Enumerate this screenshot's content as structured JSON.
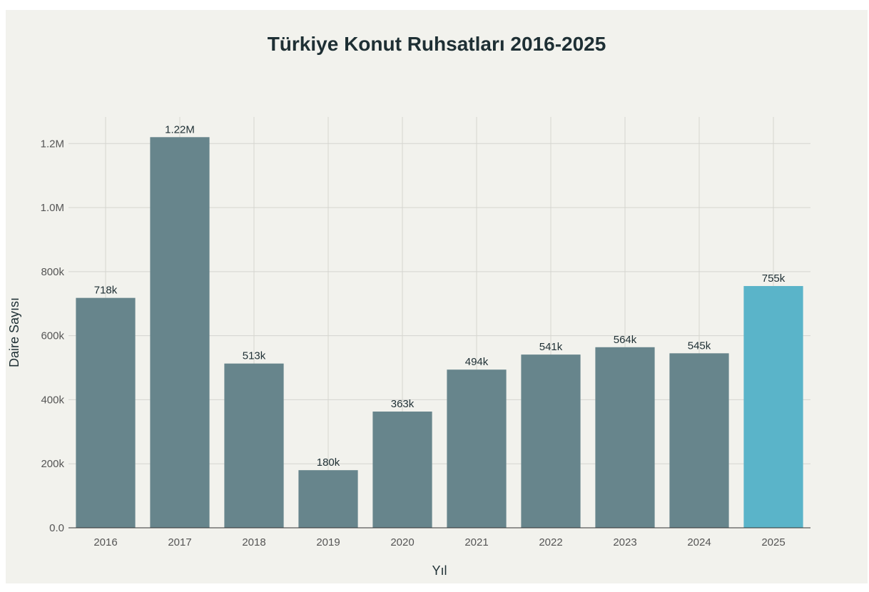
{
  "chart_data": {
    "type": "bar",
    "title": "Türkiye Konut Ruhsatları 2016-2025",
    "xlabel": "Yıl",
    "ylabel": "Daire Sayısı",
    "categories": [
      "2016",
      "2017",
      "2018",
      "2019",
      "2020",
      "2021",
      "2022",
      "2023",
      "2024",
      "2025"
    ],
    "values": [
      718000,
      1220000,
      513000,
      180000,
      363000,
      494000,
      541000,
      564000,
      545000,
      755000
    ],
    "data_labels": [
      "718k",
      "1.22M",
      "513k",
      "180k",
      "363k",
      "494k",
      "541k",
      "564k",
      "545k",
      "755k"
    ],
    "ylim": [
      0,
      1283000
    ],
    "yticks": [
      0,
      200000,
      400000,
      600000,
      800000,
      1000000,
      1200000
    ],
    "ytick_labels": [
      "0.0",
      "200k",
      "400k",
      "600k",
      "800k",
      "1.0M",
      "1.2M"
    ],
    "grid": true,
    "legend": "none",
    "colors": {
      "bar": "#67858c",
      "highlight_bar": "#5ab4c9",
      "highlight_category": "2025",
      "background": "#f2f2ed",
      "grid": "#d5d5d0"
    }
  }
}
